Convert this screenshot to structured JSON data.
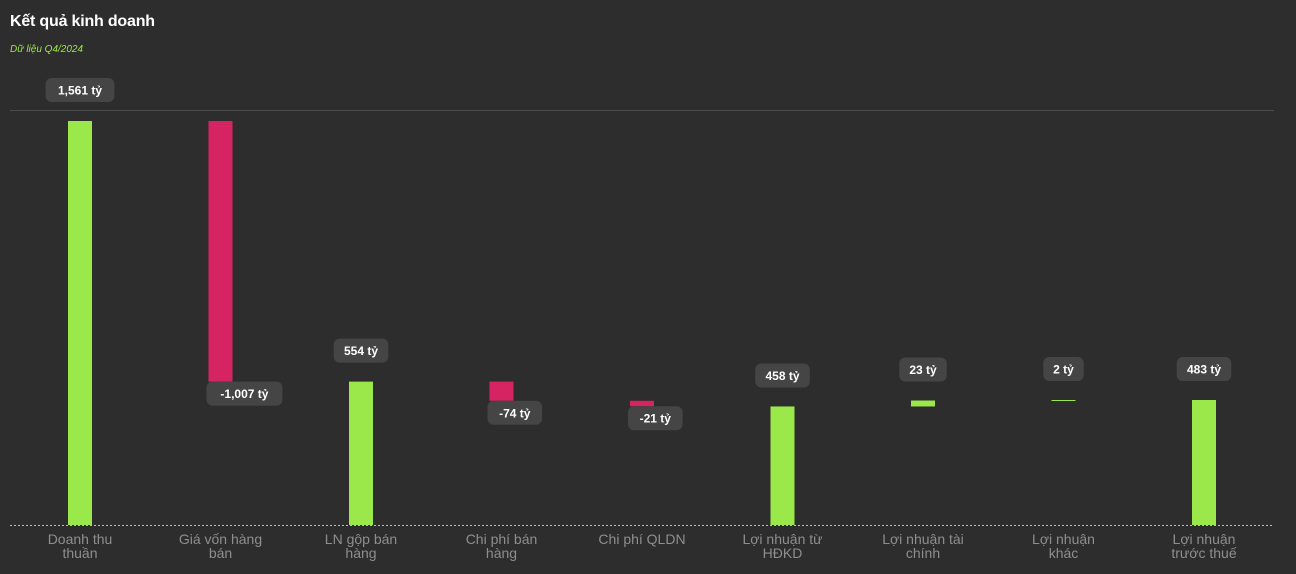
{
  "header": {
    "title": "Kết quả kinh doanh",
    "subtitle": "Dữ liệu Q4/2024"
  },
  "colors": {
    "background": "#2d2d2d",
    "positive": "#9be84a",
    "negative": "#d62463",
    "label_bg": "#454545",
    "label_text": "#ffffff",
    "axis_text": "#8e8e8e",
    "baseline": "#9be84a",
    "top_line": "#4a4a4a"
  },
  "chart_data": {
    "type": "waterfall",
    "title": "Kết quả kinh doanh",
    "subtitle": "Dữ liệu Q4/2024",
    "unit": "tỷ",
    "grid": false,
    "categories": [
      [
        "Doanh thu",
        "thuần"
      ],
      [
        "Giá vốn hàng",
        "bán"
      ],
      [
        "LN gộp bán",
        "hàng"
      ],
      [
        "Chi phí bán",
        "hàng"
      ],
      [
        "Chi phí QLDN"
      ],
      [
        "Lợi nhuận từ",
        "HĐKD"
      ],
      [
        "Lợi nhuận tài",
        "chính"
      ],
      [
        "Lợi nhuận",
        "khác"
      ],
      [
        "Lợi nhuận",
        "trước thuế"
      ]
    ],
    "bars": [
      {
        "value": 1561,
        "base": 0,
        "label": "1,561 tỷ"
      },
      {
        "value": -1007,
        "base": 1561,
        "label": "-1,007 tỷ"
      },
      {
        "value": 554,
        "base": 0,
        "label": "554 tỷ"
      },
      {
        "value": -74,
        "base": 554,
        "label": "-74 tỷ"
      },
      {
        "value": -21,
        "base": 480,
        "label": "-21 tỷ"
      },
      {
        "value": 458,
        "base": 0,
        "label": "458 tỷ"
      },
      {
        "value": 23,
        "base": 458,
        "label": "23 tỷ"
      },
      {
        "value": 2,
        "base": 481,
        "label": "2 tỷ"
      },
      {
        "value": 483,
        "base": 0,
        "label": "483 tỷ"
      }
    ],
    "ylim": [
      0,
      1561
    ]
  }
}
